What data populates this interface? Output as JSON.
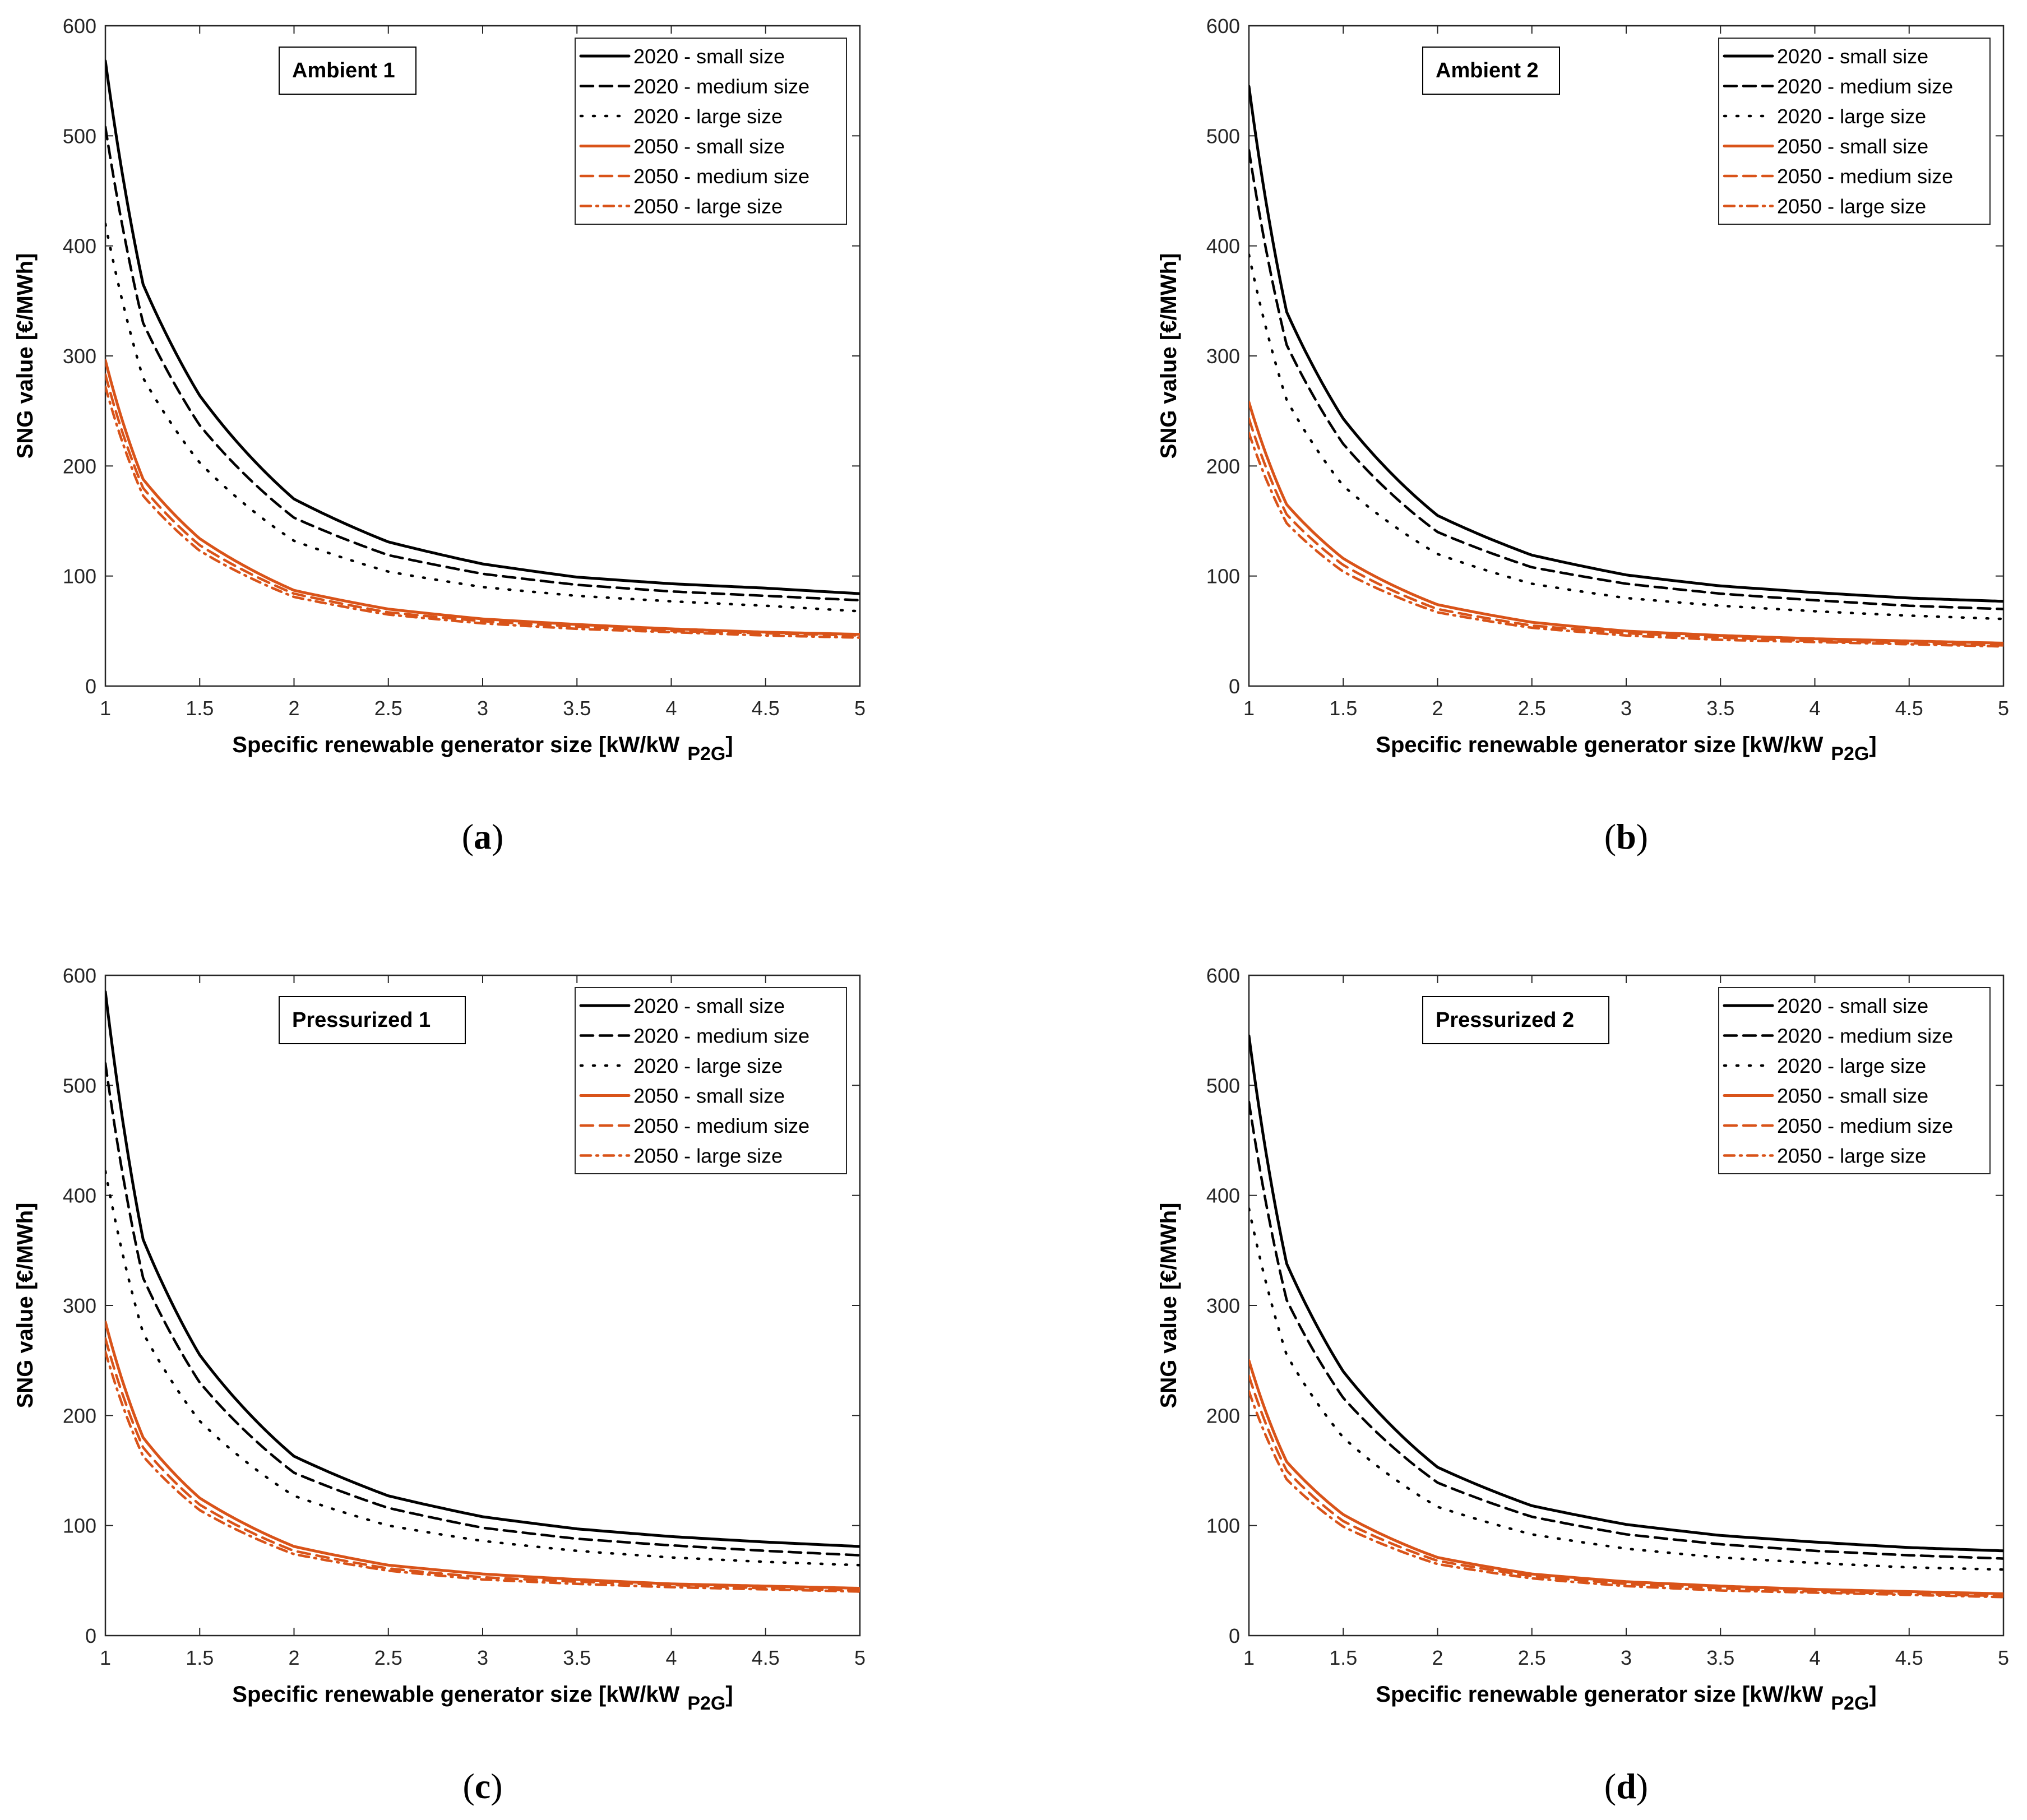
{
  "colors": {
    "c2020": "#000000",
    "c2050": "#D95319",
    "axis": "#262626"
  },
  "chart_data": [
    {
      "type": "line",
      "annotation": "Ambient 1",
      "caption_letter": "a",
      "xlabel": "Specific renewable generator size [kW/kW",
      "xlabel_sub": "P2G",
      "xlabel_end": "]",
      "ylabel": "SNG value [€/MWh]",
      "xlim": [
        1,
        5
      ],
      "ylim": [
        0,
        600
      ],
      "xticks": [
        1,
        1.5,
        2,
        2.5,
        3,
        3.5,
        4,
        4.5,
        5
      ],
      "xtick_labels": [
        "1",
        "1.5",
        "2",
        "2.5",
        "3",
        "3.5",
        "4",
        "4.5",
        "5"
      ],
      "yticks": [
        0,
        100,
        200,
        300,
        400,
        500,
        600
      ],
      "ytick_labels": [
        "0",
        "100",
        "200",
        "300",
        "400",
        "500",
        "600"
      ],
      "legend_position": "top-right",
      "x": [
        1,
        1.2,
        1.5,
        2,
        2.5,
        3,
        3.5,
        4,
        4.5,
        5
      ],
      "series": [
        {
          "name": "2020 - small size",
          "color": "c2020",
          "style": "solid",
          "values": [
            568,
            365,
            264,
            170,
            131,
            111,
            99,
            93,
            89,
            84
          ]
        },
        {
          "name": "2020 - medium size",
          "color": "c2020",
          "style": "dashed",
          "values": [
            508,
            330,
            237,
            153,
            119,
            102,
            92,
            86,
            82,
            78
          ]
        },
        {
          "name": "2020 - large size",
          "color": "c2020",
          "style": "dotted",
          "values": [
            420,
            280,
            203,
            132,
            104,
            90,
            82,
            77,
            73,
            68
          ]
        },
        {
          "name": "2050 - small size",
          "color": "c2050",
          "style": "solid",
          "values": [
            296,
            188,
            134,
            87,
            70,
            61,
            56,
            52,
            49,
            47
          ]
        },
        {
          "name": "2050 - medium size",
          "color": "c2050",
          "style": "dashed",
          "values": [
            283,
            180,
            128,
            84,
            67,
            59,
            54,
            50,
            48,
            46
          ]
        },
        {
          "name": "2050 - large size",
          "color": "c2050",
          "style": "dashdot",
          "values": [
            272,
            173,
            123,
            81,
            65,
            57,
            52,
            49,
            46,
            44
          ]
        }
      ]
    },
    {
      "type": "line",
      "annotation": "Ambient 2",
      "caption_letter": "b",
      "xlabel": "Specific renewable generator size [kW/kW",
      "xlabel_sub": "P2G",
      "xlabel_end": "]",
      "ylabel": "SNG value [€/MWh]",
      "xlim": [
        1,
        5
      ],
      "ylim": [
        0,
        600
      ],
      "xticks": [
        1,
        1.5,
        2,
        2.5,
        3,
        3.5,
        4,
        4.5,
        5
      ],
      "xtick_labels": [
        "1",
        "1.5",
        "2",
        "2.5",
        "3",
        "3.5",
        "4",
        "4.5",
        "5"
      ],
      "yticks": [
        0,
        100,
        200,
        300,
        400,
        500,
        600
      ],
      "ytick_labels": [
        "0",
        "100",
        "200",
        "300",
        "400",
        "500",
        "600"
      ],
      "legend_position": "top-right",
      "x": [
        1,
        1.2,
        1.5,
        2,
        2.5,
        3,
        3.5,
        4,
        4.5,
        5
      ],
      "series": [
        {
          "name": "2020 - small size",
          "color": "c2020",
          "style": "solid",
          "values": [
            545,
            340,
            243,
            155,
            119,
            101,
            91,
            85,
            80,
            77
          ]
        },
        {
          "name": "2020 - medium size",
          "color": "c2020",
          "style": "dashed",
          "values": [
            487,
            310,
            220,
            140,
            108,
            93,
            84,
            78,
            73,
            70
          ]
        },
        {
          "name": "2020 - large size",
          "color": "c2020",
          "style": "dotted",
          "values": [
            392,
            260,
            182,
            120,
            93,
            80,
            73,
            68,
            64,
            61
          ]
        },
        {
          "name": "2050 - small size",
          "color": "c2050",
          "style": "solid",
          "values": [
            258,
            165,
            116,
            74,
            58,
            50,
            46,
            43,
            41,
            39
          ]
        },
        {
          "name": "2050 - medium size",
          "color": "c2050",
          "style": "dashed",
          "values": [
            243,
            156,
            110,
            70,
            55,
            48,
            44,
            41,
            39,
            37
          ]
        },
        {
          "name": "2050 - large size",
          "color": "c2050",
          "style": "dashdot",
          "values": [
            230,
            148,
            104,
            67,
            53,
            46,
            42,
            40,
            38,
            36
          ]
        }
      ]
    },
    {
      "type": "line",
      "annotation": "Pressurized 1",
      "caption_letter": "c",
      "xlabel": "Specific renewable generator size [kW/kW",
      "xlabel_sub": "P2G",
      "xlabel_end": "]",
      "ylabel": "SNG value [€/MWh]",
      "xlim": [
        1,
        5
      ],
      "ylim": [
        0,
        600
      ],
      "xticks": [
        1,
        1.5,
        2,
        2.5,
        3,
        3.5,
        4,
        4.5,
        5
      ],
      "xtick_labels": [
        "1",
        "1.5",
        "2",
        "2.5",
        "3",
        "3.5",
        "4",
        "4.5",
        "5"
      ],
      "yticks": [
        0,
        100,
        200,
        300,
        400,
        500,
        600
      ],
      "ytick_labels": [
        "0",
        "100",
        "200",
        "300",
        "400",
        "500",
        "600"
      ],
      "legend_position": "top-right",
      "x": [
        1,
        1.2,
        1.5,
        2,
        2.5,
        3,
        3.5,
        4,
        4.5,
        5
      ],
      "series": [
        {
          "name": "2020 - small size",
          "color": "c2020",
          "style": "solid",
          "values": [
            585,
            360,
            255,
            163,
            127,
            108,
            97,
            90,
            85,
            81
          ]
        },
        {
          "name": "2020 - medium size",
          "color": "c2020",
          "style": "dashed",
          "values": [
            520,
            325,
            230,
            148,
            116,
            98,
            88,
            82,
            77,
            73
          ]
        },
        {
          "name": "2020 - large size",
          "color": "c2020",
          "style": "dotted",
          "values": [
            422,
            275,
            195,
            127,
            100,
            86,
            77,
            71,
            67,
            64
          ]
        },
        {
          "name": "2050 - small size",
          "color": "c2050",
          "style": "solid",
          "values": [
            285,
            180,
            125,
            81,
            64,
            56,
            51,
            47,
            45,
            43
          ]
        },
        {
          "name": "2050 - medium size",
          "color": "c2050",
          "style": "dashed",
          "values": [
            270,
            171,
            119,
            77,
            61,
            53,
            49,
            46,
            43,
            41
          ]
        },
        {
          "name": "2050 - large size",
          "color": "c2050",
          "style": "dashdot",
          "values": [
            258,
            163,
            114,
            74,
            59,
            51,
            47,
            44,
            42,
            40
          ]
        }
      ]
    },
    {
      "type": "line",
      "annotation": "Pressurized 2",
      "caption_letter": "d",
      "xlabel": "Specific renewable generator size [kW/kW",
      "xlabel_sub": "P2G",
      "xlabel_end": "]",
      "ylabel": "SNG value [€/MWh]",
      "xlim": [
        1,
        5
      ],
      "ylim": [
        0,
        600
      ],
      "xticks": [
        1,
        1.5,
        2,
        2.5,
        3,
        3.5,
        4,
        4.5,
        5
      ],
      "xtick_labels": [
        "1",
        "1.5",
        "2",
        "2.5",
        "3",
        "3.5",
        "4",
        "4.5",
        "5"
      ],
      "yticks": [
        0,
        100,
        200,
        300,
        400,
        500,
        600
      ],
      "ytick_labels": [
        "0",
        "100",
        "200",
        "300",
        "400",
        "500",
        "600"
      ],
      "legend_position": "top-right",
      "x": [
        1,
        1.2,
        1.5,
        2,
        2.5,
        3,
        3.5,
        4,
        4.5,
        5
      ],
      "series": [
        {
          "name": "2020 - small size",
          "color": "c2020",
          "style": "solid",
          "values": [
            545,
            338,
            240,
            153,
            118,
            101,
            91,
            85,
            80,
            77
          ]
        },
        {
          "name": "2020 - medium size",
          "color": "c2020",
          "style": "dashed",
          "values": [
            485,
            305,
            216,
            139,
            108,
            92,
            83,
            77,
            73,
            70
          ]
        },
        {
          "name": "2020 - large size",
          "color": "c2020",
          "style": "dotted",
          "values": [
            388,
            255,
            180,
            117,
            92,
            79,
            71,
            66,
            62,
            60
          ]
        },
        {
          "name": "2050 - small size",
          "color": "c2050",
          "style": "solid",
          "values": [
            250,
            158,
            110,
            71,
            56,
            49,
            45,
            42,
            40,
            38
          ]
        },
        {
          "name": "2050 - medium size",
          "color": "c2050",
          "style": "dashed",
          "values": [
            236,
            150,
            104,
            68,
            54,
            47,
            43,
            40,
            38,
            36
          ]
        },
        {
          "name": "2050 - large size",
          "color": "c2050",
          "style": "dashdot",
          "values": [
            222,
            142,
            99,
            65,
            52,
            45,
            41,
            39,
            37,
            35
          ]
        }
      ]
    }
  ]
}
